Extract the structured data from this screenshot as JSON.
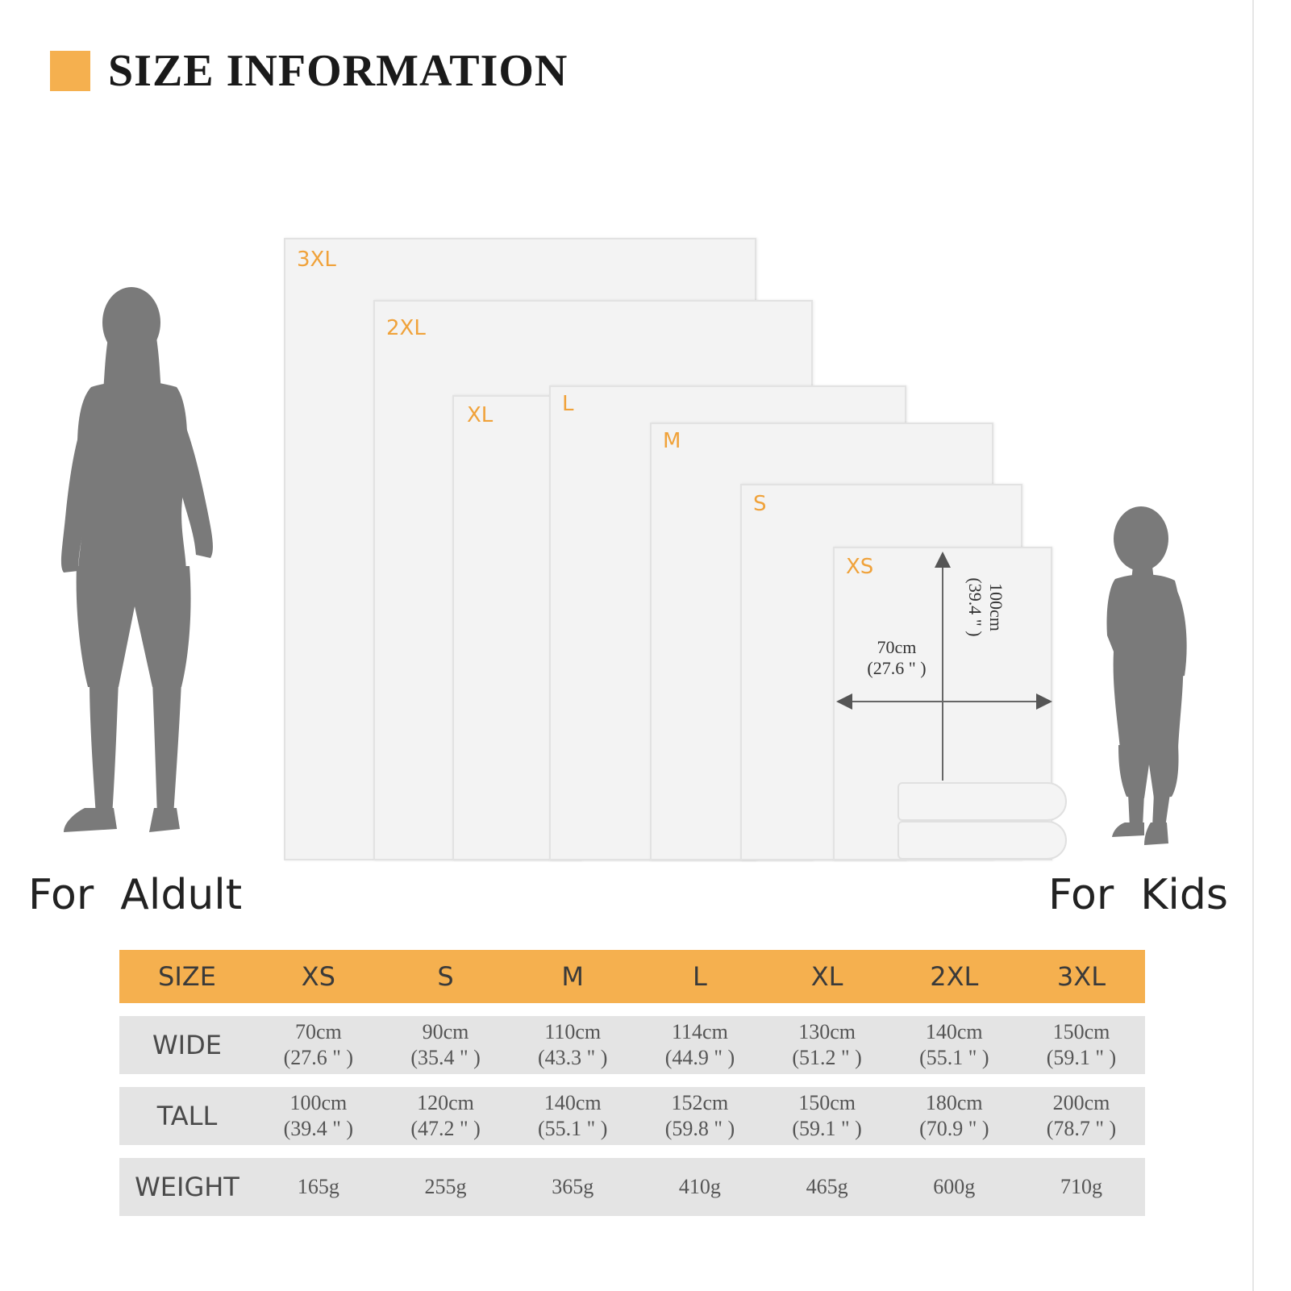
{
  "header": {
    "title": "SIZE INFORMATION",
    "accent": "#f5b04f"
  },
  "captions": {
    "adult": "For  Aldult",
    "kids": "For  Kids"
  },
  "blanket_labels": [
    "3XL",
    "2XL",
    "XL",
    "L",
    "M",
    "S",
    "XS"
  ],
  "dimensions": {
    "wide": "70cm",
    "wide_in": "(27.6 \" )",
    "tall": "100cm",
    "tall_in": "(39.4 \" )"
  },
  "table": {
    "header": {
      "label": "SIZE",
      "sizes": [
        "XS",
        "S",
        "M",
        "L",
        "XL",
        "2XL",
        "3XL"
      ]
    },
    "rows": [
      {
        "label": "WIDE",
        "values": [
          [
            "70cm",
            "(27.6 \" )"
          ],
          [
            "90cm",
            "(35.4 \" )"
          ],
          [
            "110cm",
            "(43.3 \" )"
          ],
          [
            "114cm",
            "(44.9 \" )"
          ],
          [
            "130cm",
            "(51.2 \" )"
          ],
          [
            "140cm",
            "(55.1 \" )"
          ],
          [
            "150cm",
            "(59.1 \" )"
          ]
        ]
      },
      {
        "label": "TALL",
        "values": [
          [
            "100cm",
            "(39.4 \" )"
          ],
          [
            "120cm",
            "(47.2 \" )"
          ],
          [
            "140cm",
            "(55.1 \" )"
          ],
          [
            "152cm",
            "(59.8 \" )"
          ],
          [
            "150cm",
            "(59.1 \" )"
          ],
          [
            "180cm",
            "(70.9 \" )"
          ],
          [
            "200cm",
            "(78.7 \" )"
          ]
        ]
      },
      {
        "label": "WEIGHT",
        "values": [
          [
            "165g"
          ],
          [
            "255g"
          ],
          [
            "365g"
          ],
          [
            "410g"
          ],
          [
            "465g"
          ],
          [
            "600g"
          ],
          [
            "710g"
          ]
        ]
      }
    ]
  },
  "colors": {
    "accent": "#f5b04f",
    "label_orange": "#f0a23a",
    "row_gray": "#e4e4e4",
    "silhouette": "#7a7a7a"
  }
}
